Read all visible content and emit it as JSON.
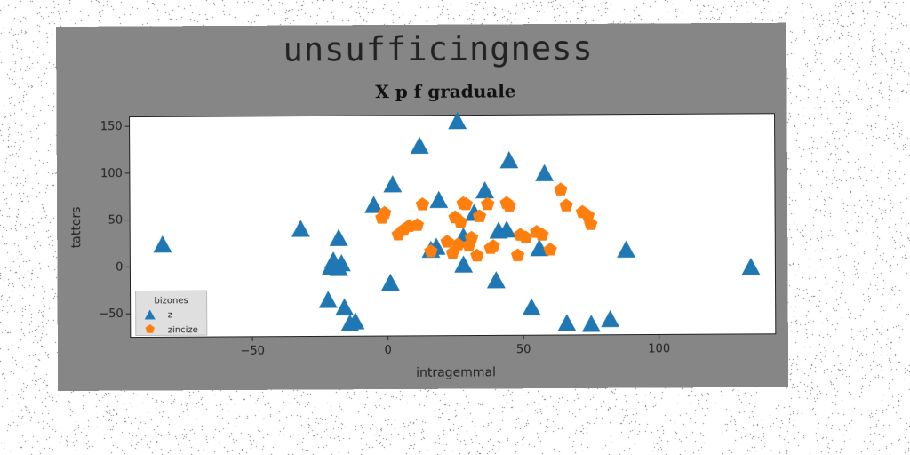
{
  "figure": {
    "suptitle": "unsufficingness",
    "background": "#868686"
  },
  "chart_data": {
    "type": "scatter",
    "title": "X p f graduale",
    "xlabel": "intragemmal",
    "ylabel": "tatters",
    "xlim": [
      -95,
      143
    ],
    "ylim": [
      -75,
      160
    ],
    "xticks": [
      -50,
      0,
      50,
      100
    ],
    "yticks": [
      -50,
      0,
      50,
      100,
      150
    ],
    "grid": false,
    "legend": {
      "title": "bizones",
      "placement": "lower-left"
    },
    "series": [
      {
        "name": "z",
        "marker": "triangle",
        "color": "#1f77b4",
        "points": [
          [
            -83,
            23
          ],
          [
            -32,
            39
          ],
          [
            -22,
            -37
          ],
          [
            -20,
            5
          ],
          [
            -21,
            -2
          ],
          [
            -19,
            -2
          ],
          [
            -17,
            2
          ],
          [
            -18,
            -3
          ],
          [
            -18,
            29
          ],
          [
            -16,
            -45
          ],
          [
            -14,
            -62
          ],
          [
            -12,
            -60
          ],
          [
            -5,
            64
          ],
          [
            1,
            -19
          ],
          [
            2,
            86
          ],
          [
            12,
            127
          ],
          [
            16,
            16
          ],
          [
            18,
            19
          ],
          [
            19,
            69
          ],
          [
            26,
            153
          ],
          [
            28,
            0
          ],
          [
            28,
            30
          ],
          [
            32,
            55
          ],
          [
            36,
            79
          ],
          [
            40,
            -17
          ],
          [
            41,
            36
          ],
          [
            44,
            37
          ],
          [
            45,
            111
          ],
          [
            53,
            -46
          ],
          [
            56,
            17
          ],
          [
            58,
            97
          ],
          [
            66,
            -63
          ],
          [
            75,
            -64
          ],
          [
            82,
            -59
          ],
          [
            88,
            15
          ],
          [
            134,
            -4
          ]
        ]
      },
      {
        "name": "zincize",
        "marker": "pentagon",
        "color": "#ff7f0e",
        "points": [
          [
            -2,
            51
          ],
          [
            -1,
            56
          ],
          [
            4,
            33
          ],
          [
            6,
            38
          ],
          [
            8,
            42
          ],
          [
            11,
            43
          ],
          [
            13,
            65
          ],
          [
            16,
            15
          ],
          [
            22,
            25
          ],
          [
            24,
            13
          ],
          [
            25,
            51
          ],
          [
            26,
            22
          ],
          [
            27,
            46
          ],
          [
            28,
            66
          ],
          [
            29,
            65
          ],
          [
            30,
            21
          ],
          [
            31,
            29
          ],
          [
            33,
            10
          ],
          [
            34,
            52
          ],
          [
            37,
            65
          ],
          [
            38,
            18
          ],
          [
            39,
            20
          ],
          [
            44,
            66
          ],
          [
            45,
            63
          ],
          [
            48,
            10
          ],
          [
            49,
            32
          ],
          [
            51,
            29
          ],
          [
            55,
            35
          ],
          [
            57,
            32
          ],
          [
            60,
            16
          ],
          [
            64,
            80
          ],
          [
            66,
            63
          ],
          [
            72,
            56
          ],
          [
            74,
            52
          ],
          [
            75,
            43
          ]
        ]
      }
    ]
  }
}
